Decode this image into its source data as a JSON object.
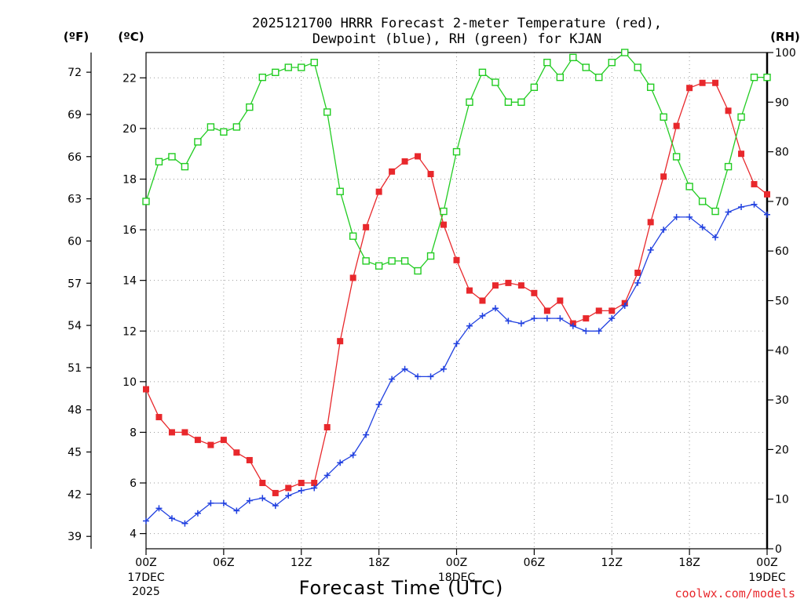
{
  "chart_data": {
    "type": "line",
    "title_line1": "2025121700 HRRR Forecast 2-meter Temperature (red),",
    "title_line2": "Dewpoint (blue), RH (green) for KJAN",
    "xlabel": "Forecast Time (UTC)",
    "credit": "coolwx.com/models",
    "left_unit_f": "(ºF)",
    "left_unit_c": "(ºC)",
    "right_unit": "(RH)",
    "x_range_hours": [
      0,
      48
    ],
    "ylim_celsius": [
      3.4,
      23.0
    ],
    "ylim_rh": [
      0,
      100
    ],
    "grid": true,
    "fahrenheit_ticks": [
      39,
      42,
      45,
      48,
      51,
      54,
      57,
      60,
      63,
      66,
      69,
      72
    ],
    "celsius_ticks": [
      4,
      6,
      8,
      10,
      12,
      14,
      16,
      18,
      20,
      22
    ],
    "rh_ticks": [
      0,
      10,
      20,
      30,
      40,
      50,
      60,
      70,
      80,
      90,
      100
    ],
    "x_ticks": [
      {
        "hour": 0,
        "label": "00Z",
        "sub1": "17DEC",
        "sub2": "2025"
      },
      {
        "hour": 6,
        "label": "06Z",
        "sub1": "",
        "sub2": ""
      },
      {
        "hour": 12,
        "label": "12Z",
        "sub1": "",
        "sub2": ""
      },
      {
        "hour": 18,
        "label": "18Z",
        "sub1": "",
        "sub2": ""
      },
      {
        "hour": 24,
        "label": "00Z",
        "sub1": "18DEC",
        "sub2": ""
      },
      {
        "hour": 30,
        "label": "06Z",
        "sub1": "",
        "sub2": ""
      },
      {
        "hour": 36,
        "label": "12Z",
        "sub1": "",
        "sub2": ""
      },
      {
        "hour": 42,
        "label": "18Z",
        "sub1": "",
        "sub2": ""
      },
      {
        "hour": 48,
        "label": "00Z",
        "sub1": "19DEC",
        "sub2": ""
      }
    ],
    "series": [
      {
        "key": "temperature",
        "units": "C",
        "color": "#e8282c",
        "marker": "filled-square",
        "values": [
          9.7,
          8.6,
          8.0,
          8.0,
          7.7,
          7.5,
          7.7,
          7.2,
          6.9,
          6.0,
          5.6,
          5.8,
          6.0,
          6.0,
          8.2,
          11.6,
          14.1,
          16.1,
          17.5,
          18.3,
          18.7,
          18.9,
          18.2,
          16.2,
          14.8,
          13.6,
          13.2,
          13.8,
          13.9,
          13.8,
          13.5,
          12.8,
          13.2,
          12.3,
          12.5,
          12.8,
          12.8,
          13.1,
          14.3,
          16.3,
          18.1,
          20.1,
          21.6,
          21.8,
          21.8,
          20.7,
          19.0,
          17.8,
          17.4
        ]
      },
      {
        "key": "dewpoint",
        "units": "C",
        "color": "#2040e0",
        "marker": "plus",
        "values": [
          4.5,
          5.0,
          4.6,
          4.4,
          4.8,
          5.2,
          5.2,
          4.9,
          5.3,
          5.4,
          5.1,
          5.5,
          5.7,
          5.8,
          6.3,
          6.8,
          7.1,
          7.9,
          9.1,
          10.1,
          10.5,
          10.2,
          10.2,
          10.5,
          11.5,
          12.2,
          12.6,
          12.9,
          12.4,
          12.3,
          12.5,
          12.5,
          12.5,
          12.2,
          12.0,
          12.0,
          12.5,
          13.0,
          13.9,
          15.2,
          16.0,
          16.5,
          16.5,
          16.1,
          15.7,
          16.7,
          16.9,
          17.0,
          16.6
        ]
      },
      {
        "key": "rh",
        "units": "%",
        "color": "#22cc22",
        "marker": "open-square",
        "values": [
          70,
          78,
          79,
          77,
          82,
          85,
          84,
          85,
          89,
          95,
          96,
          97,
          97,
          98,
          88,
          72,
          63,
          58,
          57,
          58,
          58,
          56,
          59,
          68,
          80,
          90,
          96,
          94,
          90,
          90,
          93,
          98,
          95,
          99,
          97,
          95,
          98,
          100,
          97,
          93,
          87,
          79,
          73,
          70,
          68,
          77,
          87,
          95,
          95
        ]
      }
    ]
  }
}
